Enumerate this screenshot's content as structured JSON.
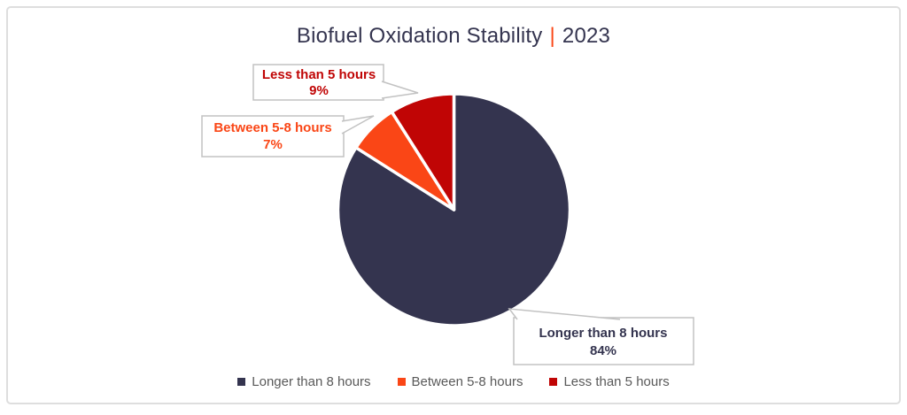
{
  "title": {
    "part1": "Biofuel Oxidation Stability",
    "divider": "|",
    "part2": "2023",
    "text_color": "#34344F",
    "divider_color": "#FA4616"
  },
  "chart_data": {
    "type": "pie",
    "title": "Biofuel Oxidation Stability | 2023",
    "categories": [
      "Longer than 8 hours",
      "Between 5-8 hours",
      "Less than 5 hours"
    ],
    "values": [
      84,
      7,
      9
    ],
    "unit": "%",
    "colors": [
      "#34344F",
      "#FA4616",
      "#C00505"
    ],
    "rotation": "clockwise-from-top",
    "legend_position": "bottom",
    "grid": false,
    "data_labels": [
      {
        "label": "Less than 5 hours",
        "value_text": "9%",
        "color": "#C00505"
      },
      {
        "label": "Between 5-8 hours",
        "value_text": "7%",
        "color": "#FA4616"
      },
      {
        "label": "Longer than 8 hours",
        "value_text": "84%",
        "color": "#34344F"
      }
    ]
  },
  "legend": {
    "items": [
      {
        "label": "Longer than 8 hours",
        "color": "#34344F"
      },
      {
        "label": "Between 5-8 hours",
        "color": "#FA4616"
      },
      {
        "label": "Less than 5 hours",
        "color": "#C00505"
      }
    ]
  }
}
